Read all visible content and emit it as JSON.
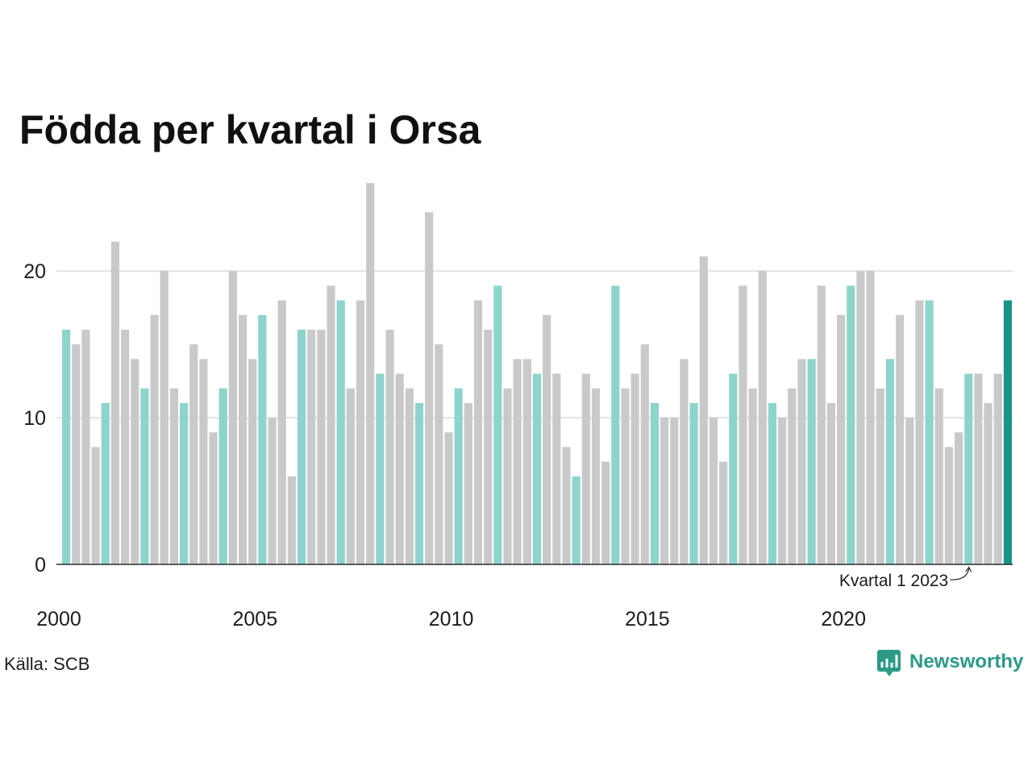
{
  "chart_data": {
    "type": "bar",
    "title": "Födda per kvartal i Orsa",
    "x": [
      2000,
      2000.25,
      2000.5,
      2000.75,
      2001,
      2001.25,
      2001.5,
      2001.75,
      2002,
      2002.25,
      2002.5,
      2002.75,
      2003,
      2003.25,
      2003.5,
      2003.75,
      2004,
      2004.25,
      2004.5,
      2004.75,
      2005,
      2005.25,
      2005.5,
      2005.75,
      2006,
      2006.25,
      2006.5,
      2006.75,
      2007,
      2007.25,
      2007.5,
      2007.75,
      2008,
      2008.25,
      2008.5,
      2008.75,
      2009,
      2009.25,
      2009.5,
      2009.75,
      2010,
      2010.25,
      2010.5,
      2010.75,
      2011,
      2011.25,
      2011.5,
      2011.75,
      2012,
      2012.25,
      2012.5,
      2012.75,
      2013,
      2013.25,
      2013.5,
      2013.75,
      2014,
      2014.25,
      2014.5,
      2014.75,
      2015,
      2015.25,
      2015.5,
      2015.75,
      2016,
      2016.25,
      2016.5,
      2016.75,
      2017,
      2017.25,
      2017.5,
      2017.75,
      2018,
      2018.25,
      2018.5,
      2018.75,
      2019,
      2019.25,
      2019.5,
      2019.75,
      2020,
      2020.25,
      2020.5,
      2020.75,
      2021,
      2021.25,
      2021.5,
      2021.75,
      2022,
      2022.25,
      2022.5,
      2022.75,
      2023,
      2023.25,
      2023.5,
      2023.75,
      2024
    ],
    "values": [
      16,
      15,
      16,
      8,
      11,
      22,
      16,
      14,
      12,
      17,
      20,
      12,
      11,
      15,
      14,
      9,
      12,
      20,
      17,
      14,
      17,
      10,
      18,
      6,
      16,
      16,
      16,
      19,
      18,
      12,
      18,
      26,
      13,
      16,
      13,
      12,
      11,
      24,
      15,
      9,
      12,
      11,
      18,
      16,
      19,
      12,
      14,
      14,
      13,
      17,
      13,
      8,
      6,
      13,
      12,
      7,
      19,
      12,
      13,
      15,
      11,
      10,
      10,
      14,
      11,
      21,
      10,
      7,
      13,
      19,
      12,
      20,
      11,
      10,
      12,
      14,
      14,
      19,
      11,
      17,
      19,
      20,
      20,
      12,
      14,
      17,
      10,
      18,
      18,
      12,
      8,
      9,
      13,
      13,
      11,
      13,
      18
    ],
    "xlim": [
      2000,
      2024.25
    ],
    "ylim": [
      0,
      26
    ],
    "xticks": [
      2000,
      2005,
      2010,
      2015,
      2020
    ],
    "yticks": [
      0,
      10,
      20
    ],
    "grid": true,
    "colors": {
      "bar": "#c9c9c9",
      "quarter_1": "#8dd4cc",
      "latest": "#179582"
    },
    "annotations": [
      {
        "text": "Kvartal 1 2023",
        "x": 2023
      }
    ]
  },
  "source": "Källa: SCB",
  "brand": {
    "name": "Newsworthy",
    "icon": "newsworthy-logo-icon",
    "color": "#2b9a87"
  }
}
